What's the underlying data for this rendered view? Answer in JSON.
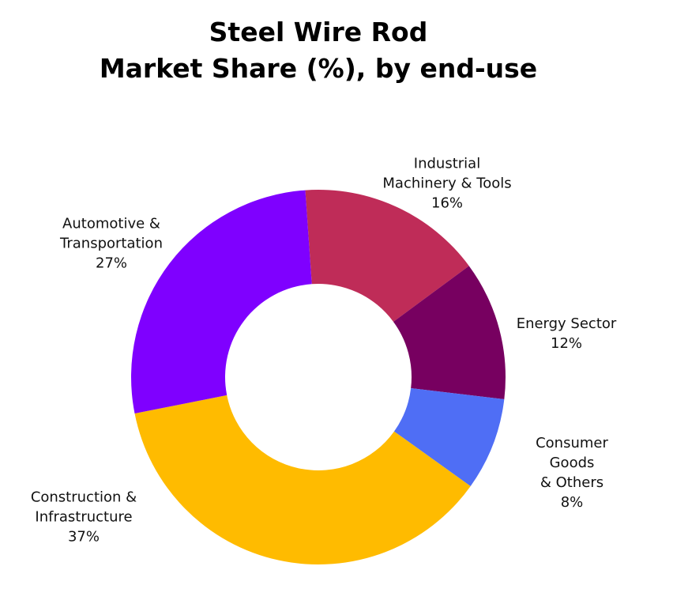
{
  "chart_data": {
    "type": "donut",
    "title": "Steel Wire Rod\nMarket Share (%), by end-use",
    "categories": [
      "Industrial\nMachinery & Tools",
      "Energy Sector",
      "Consumer Goods\n& Others",
      "Construction &\nInfrastructure",
      "Automotive &\nTransportation"
    ],
    "values": [
      16,
      12,
      8,
      37,
      27
    ],
    "value_labels": [
      "16%",
      "12%",
      "8%",
      "37%",
      "27%"
    ],
    "colors": [
      "#bf2c58",
      "#770060",
      "#4f6ef5",
      "#ffbb00",
      "#7f00ff"
    ]
  }
}
